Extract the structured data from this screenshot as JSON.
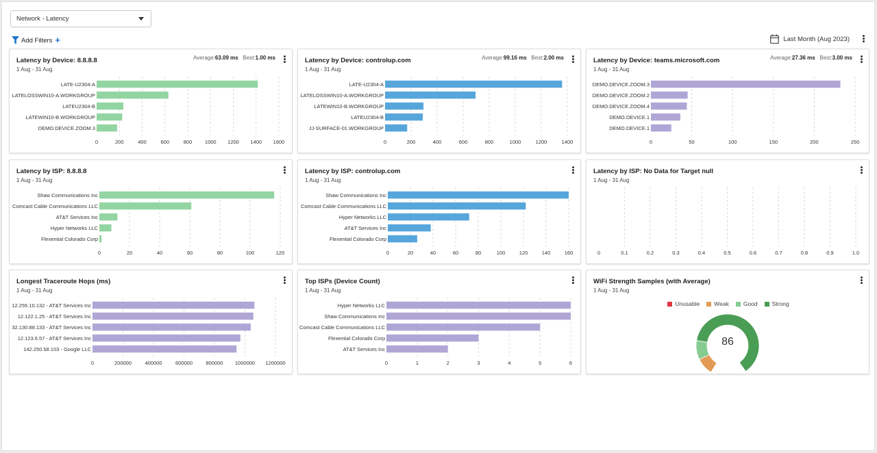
{
  "selector": {
    "label": "Network - Latency"
  },
  "filters": {
    "label": "Add Filters",
    "plus": "+"
  },
  "date_range": {
    "label": "Last Month (Aug 2023)"
  },
  "panels": [
    {
      "title": "Latency by Device: 8.8.8.8",
      "date": "1 Aug - 31 Aug",
      "stats": {
        "avg_label": "Average:",
        "avg": "63.09 ms",
        "best_label": "Best:",
        "best": "1.00 ms"
      },
      "color": "#93d5a2",
      "chart_data": {
        "type": "bar",
        "orientation": "horizontal",
        "categories": [
          "LATE-U2304-A",
          "LATELOSSWIN10-A.WORKGROUP",
          "LATEU2304-B",
          "LATEWIN10-B.WORKGROUP",
          "DEMO.DEVICE.ZOOM.3"
        ],
        "values": [
          1415,
          630,
          235,
          225,
          180
        ],
        "ticks": [
          0,
          200,
          400,
          600,
          800,
          1000,
          1200,
          1400,
          1600
        ],
        "xlim": [
          0,
          1600
        ]
      }
    },
    {
      "title": "Latency by Device: controlup.com",
      "date": "1 Aug - 31 Aug",
      "stats": {
        "avg_label": "Average:",
        "avg": "99.16 ms",
        "best_label": "Best:",
        "best": "2.00 ms"
      },
      "color": "#56a6dc",
      "chart_data": {
        "type": "bar",
        "orientation": "horizontal",
        "categories": [
          "LATE-U2304-A",
          "LATELOSSWIN10-A.WORKGROUP",
          "LATEWIN10-B.WORKGROUP",
          "LATEU2304-B",
          "JJ-SURFACE-01.WORKGROUP"
        ],
        "values": [
          1360,
          695,
          295,
          290,
          170
        ],
        "ticks": [
          0,
          200,
          400,
          600,
          800,
          1000,
          1200,
          1400
        ],
        "xlim": [
          0,
          1400
        ]
      }
    },
    {
      "title": "Latency by Device: teams.microsoft.com",
      "date": "1 Aug - 31 Aug",
      "stats": {
        "avg_label": "Average:",
        "avg": "27.36 ms",
        "best_label": "Best:",
        "best": "3.00 ms"
      },
      "color": "#b0a6d6",
      "chart_data": {
        "type": "bar",
        "orientation": "horizontal",
        "categories": [
          "DEMO.DEVICE.ZOOM.3",
          "DEMO.DEVICE.ZOOM.2",
          "DEMO.DEVICE.ZOOM.4",
          "DEMO.DEVICE.1",
          "DEMO.DEVICE.1"
        ],
        "values": [
          232,
          45,
          44,
          36,
          25
        ],
        "ticks": [
          0,
          50,
          100,
          150,
          200,
          250
        ],
        "xlim": [
          0,
          250
        ]
      }
    },
    {
      "title": "Latency by ISP: 8.8.8.8",
      "date": "1 Aug - 31 Aug",
      "color": "#93d5a2",
      "chart_data": {
        "type": "bar",
        "orientation": "horizontal",
        "categories": [
          "Shaw Communications Inc",
          "Comcast Cable Communications LLC",
          "AT&T Services Inc",
          "Hyper Networks LLC",
          "Flexential Colorado Corp"
        ],
        "values": [
          116,
          61,
          12,
          8,
          1.5
        ],
        "ticks": [
          0,
          20,
          40,
          60,
          80,
          100,
          120
        ],
        "xlim": [
          0,
          120
        ]
      }
    },
    {
      "title": "Latency by ISP: controlup.com",
      "date": "1 Aug - 31 Aug",
      "color": "#56a6dc",
      "chart_data": {
        "type": "bar",
        "orientation": "horizontal",
        "categories": [
          "Shaw Communications Inc",
          "Comcast Cable Communications LLC",
          "Hyper Networks LLC",
          "AT&T Services Inc",
          "Flexential Colorado Corp"
        ],
        "values": [
          160,
          122,
          72,
          38,
          26
        ],
        "ticks": [
          0,
          20,
          40,
          60,
          80,
          100,
          120,
          140,
          160
        ],
        "xlim": [
          0,
          160
        ]
      }
    },
    {
      "title": "Latency by ISP: No Data for Target null",
      "date": "1 Aug - 31 Aug",
      "color": "#93d5a2",
      "chart_data": {
        "type": "bar",
        "orientation": "horizontal",
        "categories": [],
        "values": [],
        "ticks": [
          "0",
          "0.1",
          "0.2",
          "0.3",
          "0.4",
          "0.5",
          "0.6",
          "0.7",
          "0.8",
          "0.9",
          "1.0"
        ],
        "xlim": [
          0,
          1
        ]
      }
    },
    {
      "title": "Longest Traceroute Hops (ms)",
      "date": "1 Aug - 31 Aug",
      "color": "#b0a6d6",
      "chart_data": {
        "type": "bar",
        "orientation": "horizontal",
        "categories": [
          "12.255.10.132 - AT&T Services Inc",
          "12.122.1.25 - AT&T Services Inc",
          "32.130.88.133 - AT&T Services Inc",
          "12.123.6.57 - AT&T Services Inc",
          "142.250.58.103 - Google LLC"
        ],
        "values": [
          1062000,
          1055000,
          1038000,
          970000,
          945000
        ],
        "ticks": [
          0,
          200000,
          400000,
          600000,
          800000,
          1000000,
          1200000
        ],
        "xlim": [
          0,
          1200000
        ]
      }
    },
    {
      "title": "Top ISPs (Device Count)",
      "date": "1 Aug - 31 Aug",
      "color": "#b0a6d6",
      "chart_data": {
        "type": "bar",
        "orientation": "horizontal",
        "categories": [
          "Hyper Networks LLC",
          "Shaw Communications Inc",
          "Comcast Cable Communications LLC",
          "Flexential Colorado Corp",
          "AT&T Services Inc"
        ],
        "values": [
          6,
          6,
          5,
          3,
          2
        ],
        "ticks": [
          0,
          1,
          2,
          3,
          4,
          5,
          6
        ],
        "xlim": [
          0,
          6
        ]
      }
    },
    {
      "title": "WiFi Strength Samples (with Average)",
      "date": "1 Aug - 31 Aug",
      "legend": [
        {
          "label": "Unusable",
          "color": "#e0343f"
        },
        {
          "label": "Weak",
          "color": "#e39a55"
        },
        {
          "label": "Good",
          "color": "#86cc91"
        },
        {
          "label": "Strong",
          "color": "#4a9d55"
        }
      ],
      "chart_data": {
        "type": "pie",
        "variant": "gauge",
        "value": 86,
        "slices": [
          {
            "name": "Weak",
            "value": 8
          },
          {
            "name": "Good",
            "value": 9
          },
          {
            "name": "Strong",
            "value": 57
          }
        ]
      }
    }
  ]
}
